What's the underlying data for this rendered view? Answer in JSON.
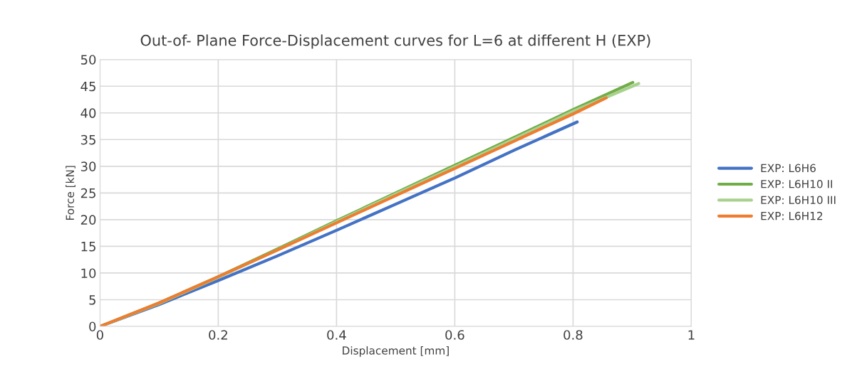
{
  "chart_data": {
    "type": "line",
    "title": "Out-of- Plane Force-Displacement curves for L=6 at different H (EXP)",
    "xlabel": "Displacement [mm]",
    "ylabel": "Force [kN]",
    "xlim": [
      0,
      1
    ],
    "xticks": [
      0,
      0.2,
      0.4,
      0.6,
      0.8,
      1
    ],
    "ylim": [
      0,
      50
    ],
    "yticks": [
      0,
      5,
      10,
      15,
      20,
      25,
      30,
      35,
      40,
      45,
      50
    ],
    "grid": true,
    "legend": "right",
    "marker": "none",
    "line_style": "solid",
    "series": [
      {
        "name": "EXP: L6H6",
        "color": "#4472c4",
        "x": [
          0,
          0.1,
          0.2,
          0.3,
          0.4,
          0.5,
          0.6,
          0.7,
          0.807
        ],
        "values": [
          0,
          4.1,
          8.6,
          13.2,
          18.0,
          22.9,
          27.8,
          33.0,
          38.3
        ]
      },
      {
        "name": "EXP: L6H10 II",
        "color": "#70ad47",
        "x": [
          0,
          0.1,
          0.2,
          0.3,
          0.4,
          0.5,
          0.6,
          0.7,
          0.8,
          0.901
        ],
        "values": [
          0,
          4.4,
          9.3,
          14.5,
          19.8,
          25.0,
          30.2,
          35.4,
          40.6,
          45.7
        ]
      },
      {
        "name": "EXP: L6H10 III",
        "color": "#a9d18e",
        "x": [
          0,
          0.1,
          0.2,
          0.3,
          0.4,
          0.5,
          0.6,
          0.7,
          0.8,
          0.911
        ],
        "values": [
          0,
          4.3,
          9.2,
          14.3,
          19.6,
          24.8,
          29.9,
          35.1,
          40.3,
          45.5
        ]
      },
      {
        "name": "EXP: L6H12",
        "color": "#ed7d31",
        "x": [
          0,
          0.1,
          0.2,
          0.3,
          0.4,
          0.5,
          0.6,
          0.7,
          0.8,
          0.856
        ],
        "values": [
          0,
          4.4,
          9.3,
          14.3,
          19.4,
          24.5,
          29.6,
          34.7,
          39.8,
          42.8
        ]
      }
    ]
  }
}
